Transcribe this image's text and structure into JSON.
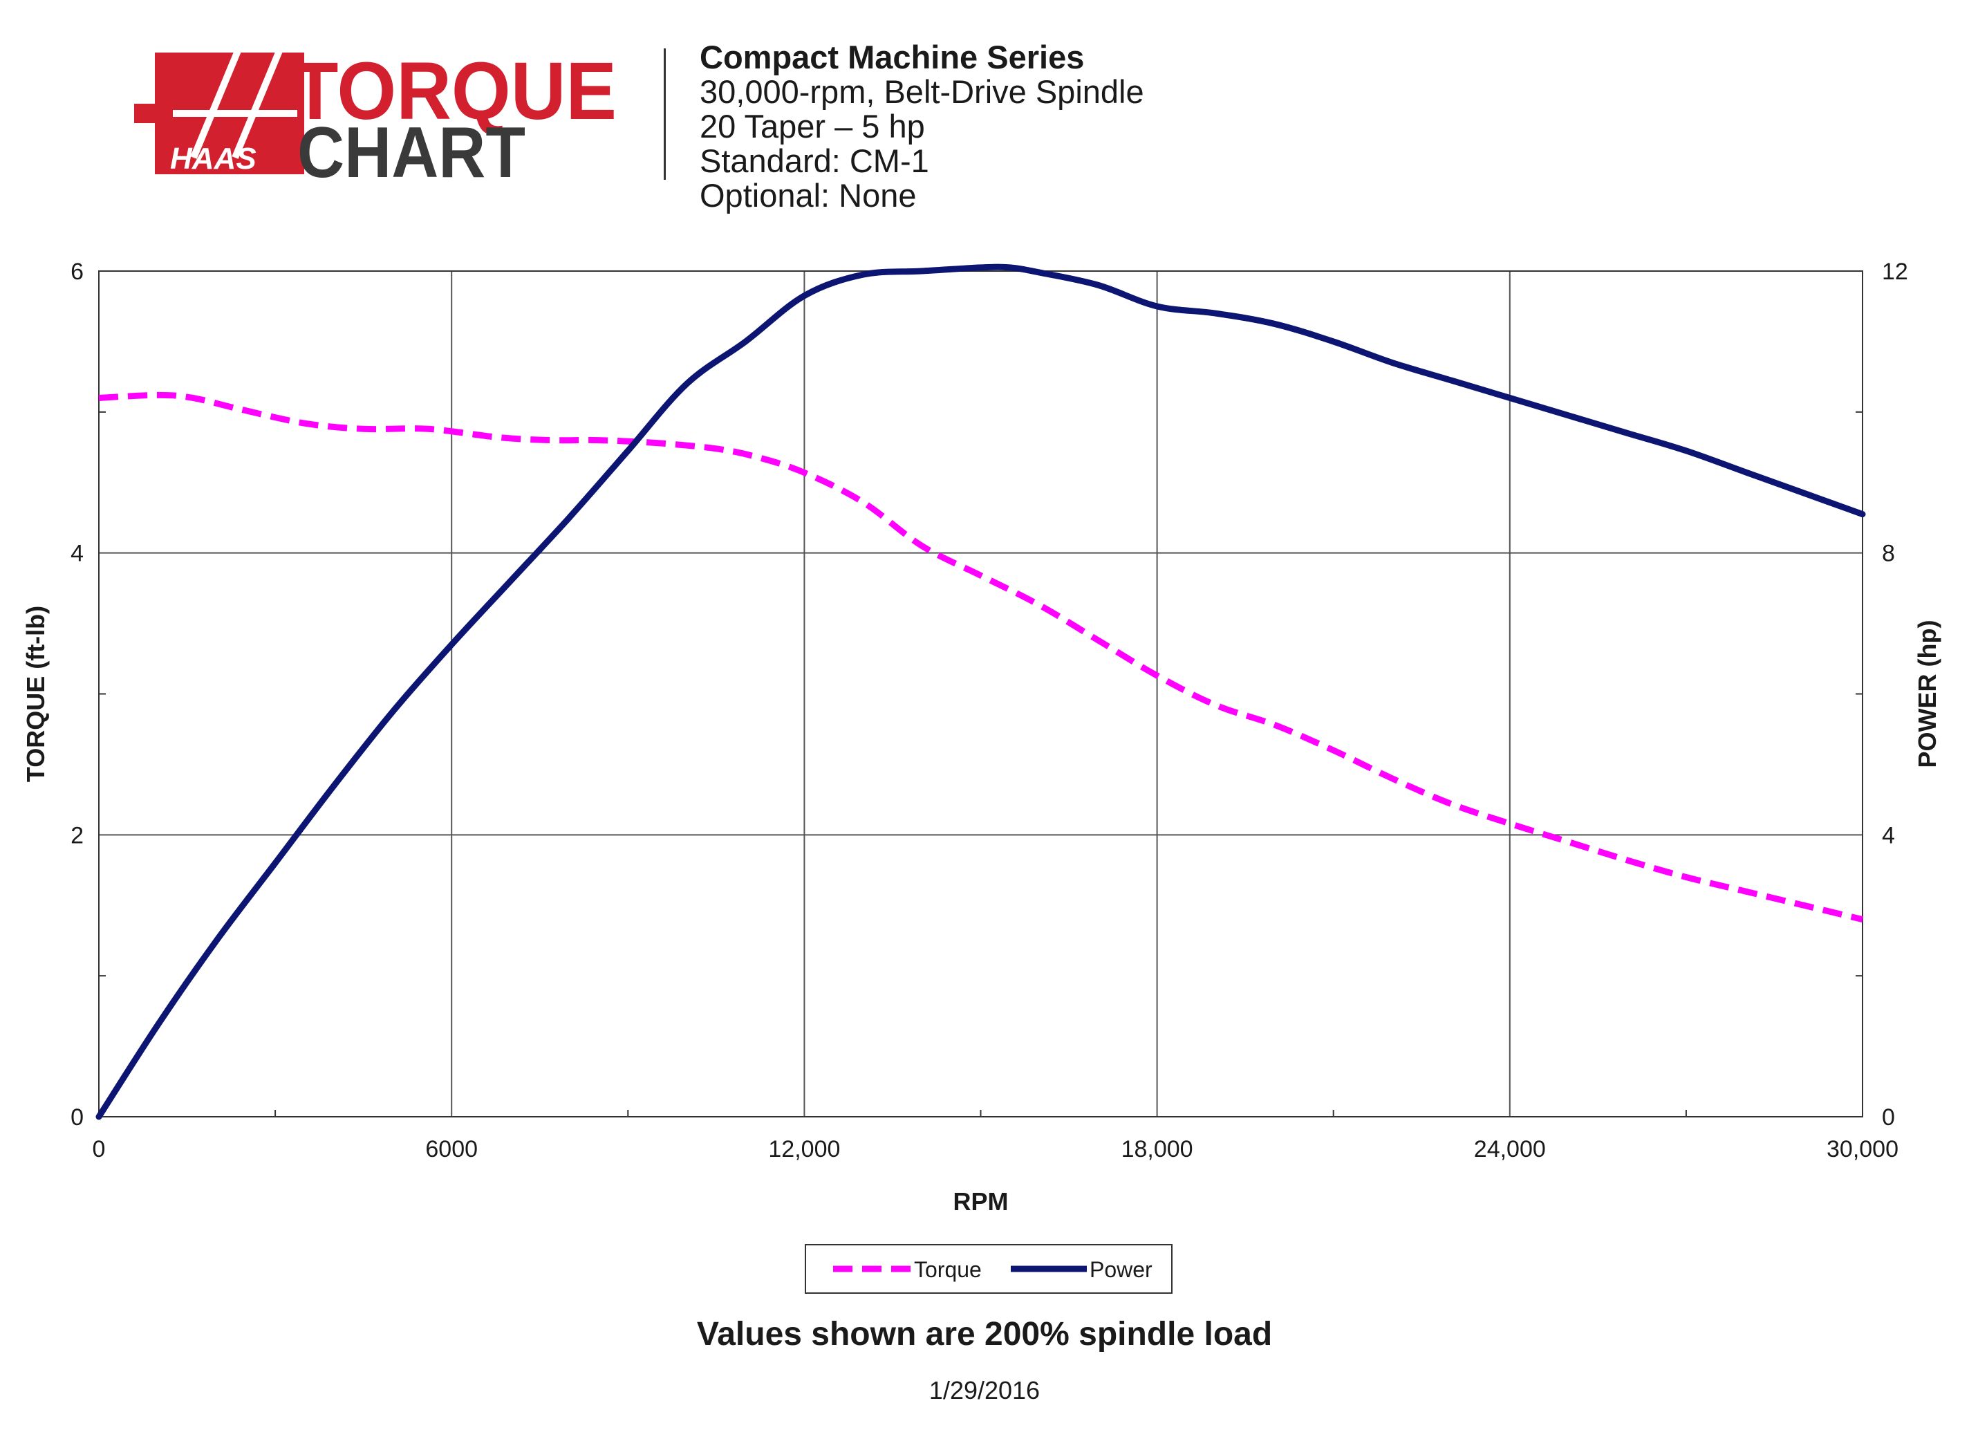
{
  "logo": {
    "brand": "HAAS",
    "word1": "TORQUE",
    "word2": "CHART",
    "brand_color": "#d2202f",
    "dark_color": "#3a3a3a"
  },
  "header": {
    "series": "Compact Machine Series",
    "line2": "30,000-rpm, Belt-Drive Spindle",
    "line3": "20 Taper – 5 hp",
    "line4": "Standard: CM-1",
    "line5": "Optional: None"
  },
  "chart_data": {
    "type": "line",
    "xlabel": "RPM",
    "ylabel_left": "TORQUE (ft-lb)",
    "ylabel_right": "POWER (hp)",
    "xlim": [
      0,
      30000
    ],
    "ylim_left": [
      0,
      6
    ],
    "ylim_right": [
      0,
      12
    ],
    "x_ticks": [
      0,
      6000,
      12000,
      18000,
      24000,
      30000
    ],
    "x_tick_labels": [
      "0",
      "6000",
      "12,000",
      "18,000",
      "24,000",
      "30,000"
    ],
    "y_left_ticks": [
      0,
      2,
      4,
      6
    ],
    "y_left_tick_labels": [
      "0",
      "2",
      "4",
      "6"
    ],
    "y_right_ticks": [
      0,
      4,
      8,
      12
    ],
    "y_right_tick_labels": [
      "0",
      "4",
      "8",
      "12"
    ],
    "grid": true,
    "legend_placement": "bottom-center",
    "series": [
      {
        "name": "Torque",
        "axis": "left",
        "color": "#ff00ff",
        "dashed": true,
        "x": [
          0,
          1000,
          1600,
          2400,
          3500,
          4500,
          5600,
          6800,
          7700,
          8500,
          9500,
          10500,
          11200,
          12000,
          13000,
          14000,
          15000,
          16000,
          17000,
          18000,
          19000,
          20000,
          21000,
          22000,
          23000,
          24000,
          25000,
          26000,
          27000,
          28000,
          29000,
          30000
        ],
        "y": [
          5.1,
          5.12,
          5.1,
          5.02,
          4.92,
          4.88,
          4.88,
          4.82,
          4.8,
          4.8,
          4.78,
          4.74,
          4.68,
          4.57,
          4.36,
          4.05,
          3.84,
          3.63,
          3.38,
          3.13,
          2.92,
          2.78,
          2.6,
          2.4,
          2.22,
          2.08,
          1.95,
          1.82,
          1.7,
          1.6,
          1.5,
          1.4
        ]
      },
      {
        "name": "Power",
        "axis": "right",
        "color": "#0c1572",
        "dashed": false,
        "x": [
          0,
          1000,
          2000,
          3000,
          4000,
          5000,
          6000,
          7000,
          8000,
          9000,
          10000,
          11000,
          12000,
          13000,
          14000,
          15000,
          15500,
          16000,
          17000,
          18000,
          19000,
          20000,
          21000,
          22000,
          23000,
          24000,
          25000,
          26000,
          27000,
          28000,
          29000,
          30000
        ],
        "y": [
          0,
          1.3,
          2.5,
          3.6,
          4.7,
          5.75,
          6.7,
          7.6,
          8.5,
          9.45,
          10.4,
          11.0,
          11.65,
          11.95,
          12.0,
          12.05,
          12.05,
          11.98,
          11.8,
          11.5,
          11.4,
          11.25,
          11.0,
          10.7,
          10.45,
          10.2,
          9.95,
          9.7,
          9.45,
          9.15,
          8.85,
          8.55
        ]
      }
    ]
  },
  "footer": {
    "note": "Values shown are 200% spindle load",
    "date": "1/29/2016"
  }
}
